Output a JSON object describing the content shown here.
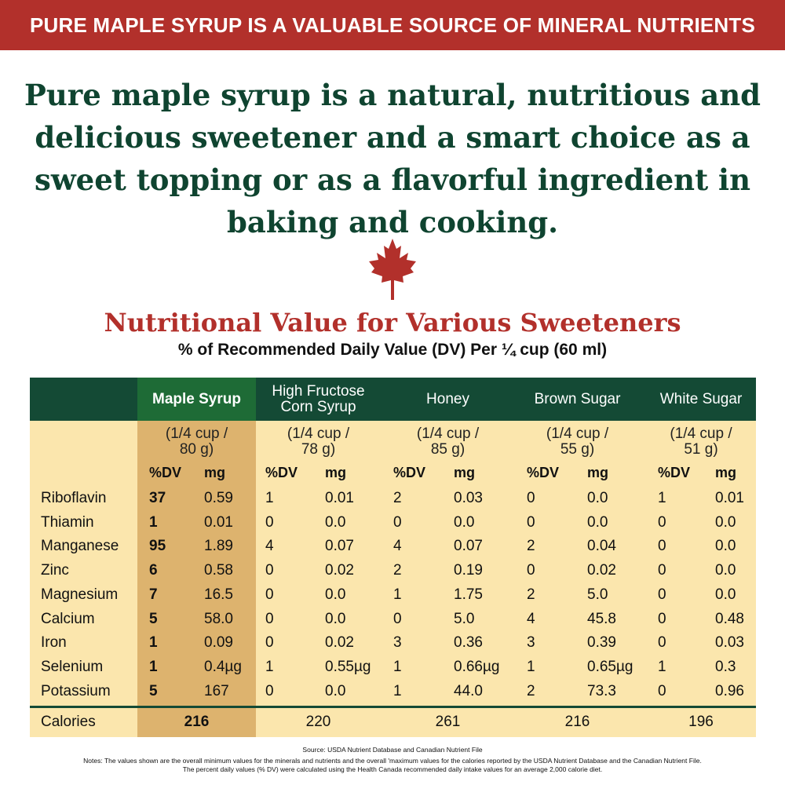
{
  "banner": "PURE MAPLE SYRUP IS A VALUABLE SOURCE OF MINERAL NUTRIENTS",
  "intro": "Pure maple syrup is a natural, nutritious and delicious sweetener and a smart choice as a sweet topping or as a flavorful ingredient in baking and cooking.",
  "colors": {
    "banner": "#b2302b",
    "header": "#144a35",
    "maple_header": "#1e6b36",
    "maple_column": "#ddb36e",
    "table_bg": "#fbe6ad",
    "intro_text": "#0f4430"
  },
  "icons": {
    "leaf": "maple-leaf-icon"
  },
  "title": "Nutritional Value for Various Sweeteners",
  "subtitle": "% of Recommended Daily Value (DV) Per ¼ cup (60 ml)",
  "table": {
    "columns": [
      {
        "name": "Maple Syrup",
        "serving_line1": "(1/4 cup /",
        "serving_line2": "80 g)"
      },
      {
        "name_line1": "High Fructose",
        "name_line2": "Corn Syrup",
        "serving_line1": "(1/4 cup /",
        "serving_line2": "78 g)"
      },
      {
        "name": "Honey",
        "serving_line1": "(1/4 cup /",
        "serving_line2": "85 g)"
      },
      {
        "name": "Brown Sugar",
        "serving_line1": "(1/4 cup /",
        "serving_line2": "55 g)"
      },
      {
        "name": "White Sugar",
        "serving_line1": "(1/4 cup /",
        "serving_line2": "51 g)"
      }
    ],
    "unit_dv": "%DV",
    "unit_mg": "mg",
    "rows": [
      {
        "label": "Riboflavin",
        "values": [
          [
            "37",
            "0.59"
          ],
          [
            "1",
            "0.01"
          ],
          [
            "2",
            "0.03"
          ],
          [
            "0",
            "0.0"
          ],
          [
            "1",
            "0.01"
          ]
        ]
      },
      {
        "label": "Thiamin",
        "values": [
          [
            "1",
            "0.01"
          ],
          [
            "0",
            "0.0"
          ],
          [
            "0",
            "0.0"
          ],
          [
            "0",
            "0.0"
          ],
          [
            "0",
            "0.0"
          ]
        ]
      },
      {
        "label": "Manganese",
        "values": [
          [
            "95",
            "1.89"
          ],
          [
            "4",
            "0.07"
          ],
          [
            "4",
            "0.07"
          ],
          [
            "2",
            "0.04"
          ],
          [
            "0",
            "0.0"
          ]
        ]
      },
      {
        "label": "Zinc",
        "values": [
          [
            "6",
            "0.58"
          ],
          [
            "0",
            "0.02"
          ],
          [
            "2",
            "0.19"
          ],
          [
            "0",
            "0.02"
          ],
          [
            "0",
            "0.0"
          ]
        ]
      },
      {
        "label": "Magnesium",
        "values": [
          [
            "7",
            "16.5"
          ],
          [
            "0",
            "0.0"
          ],
          [
            "1",
            "1.75"
          ],
          [
            "2",
            "5.0"
          ],
          [
            "0",
            "0.0"
          ]
        ]
      },
      {
        "label": "Calcium",
        "values": [
          [
            "5",
            "58.0"
          ],
          [
            "0",
            "0.0"
          ],
          [
            "0",
            "5.0"
          ],
          [
            "4",
            "45.8"
          ],
          [
            "0",
            "0.48"
          ]
        ]
      },
      {
        "label": "Iron",
        "values": [
          [
            "1",
            "0.09"
          ],
          [
            "0",
            "0.02"
          ],
          [
            "3",
            "0.36"
          ],
          [
            "3",
            "0.39"
          ],
          [
            "0",
            "0.03"
          ]
        ]
      },
      {
        "label": "Selenium",
        "values": [
          [
            "1",
            "0.4µg"
          ],
          [
            "1",
            "0.55µg"
          ],
          [
            "1",
            "0.66µg"
          ],
          [
            "1",
            "0.65µg"
          ],
          [
            "1",
            "0.3"
          ]
        ]
      },
      {
        "label": "Potassium",
        "values": [
          [
            "5",
            "167"
          ],
          [
            "0",
            "0.0"
          ],
          [
            "1",
            "44.0"
          ],
          [
            "2",
            "73.3"
          ],
          [
            "0",
            "0.96"
          ]
        ]
      }
    ],
    "calories_label": "Calories",
    "calories": [
      "216",
      "220",
      "261",
      "216",
      "196"
    ]
  },
  "source": "Source: USDA Nutrient Database and Canadian Nutrient File",
  "notes_line1": "Notes: The values shown are the overall minimum values for the minerals and nutrients and the overall 'maximum values for the calories reported by the USDA Nutrient Database and the Canadian Nutrient File.",
  "notes_line2": "The percent daily values (% DV) were calculated using the Health Canada recommended daily intake values for an average 2,000 calorie diet."
}
